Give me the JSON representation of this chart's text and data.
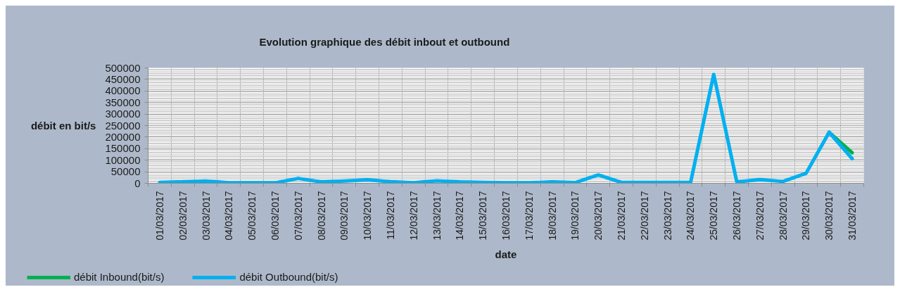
{
  "chart_data": {
    "type": "line",
    "title": "Evolution graphique des débit inbout et outbound",
    "xlabel": "date",
    "ylabel": "débit en bit/s",
    "categories": [
      "01/03/2017",
      "02/03/2017",
      "03/03/2017",
      "04/03/2017",
      "05/03/2017",
      "06/03/2017",
      "07/03/2017",
      "08/03/2017",
      "09/03/2017",
      "10/03/2017",
      "11/03/2017",
      "12/03/2017",
      "13/03/2017",
      "14/03/2017",
      "15/03/2017",
      "16/03/2017",
      "17/03/2017",
      "18/03/2017",
      "19/03/2017",
      "20/03/2017",
      "21/03/2017",
      "22/03/2017",
      "23/03/2017",
      "24/03/2017",
      "25/03/2017",
      "26/03/2017",
      "27/03/2017",
      "28/03/2017",
      "29/03/2017",
      "30/03/2017",
      "31/03/2017"
    ],
    "series": [
      {
        "name": "débit Inbound(bit/s)",
        "color": "#00b050",
        "values": [
          null,
          null,
          null,
          null,
          null,
          null,
          null,
          null,
          null,
          null,
          null,
          null,
          null,
          null,
          null,
          null,
          null,
          null,
          null,
          null,
          null,
          null,
          null,
          null,
          null,
          null,
          null,
          null,
          null,
          221000,
          132000
        ]
      },
      {
        "name": "débit Outbound(bit/s)",
        "color": "#00b0f0",
        "values": [
          4000,
          6000,
          10000,
          2000,
          2000,
          2000,
          21000,
          6000,
          10000,
          15000,
          7000,
          2000,
          11000,
          6000,
          4000,
          2000,
          2000,
          6000,
          3000,
          36000,
          4000,
          4000,
          4000,
          4000,
          472000,
          6000,
          16000,
          8000,
          43000,
          221000,
          106000
        ]
      }
    ],
    "ylim": [
      0,
      500000
    ],
    "yticks": [
      0,
      50000,
      100000,
      150000,
      200000,
      250000,
      300000,
      350000,
      400000,
      450000,
      500000
    ],
    "grid": true,
    "legend": "bottom left"
  }
}
